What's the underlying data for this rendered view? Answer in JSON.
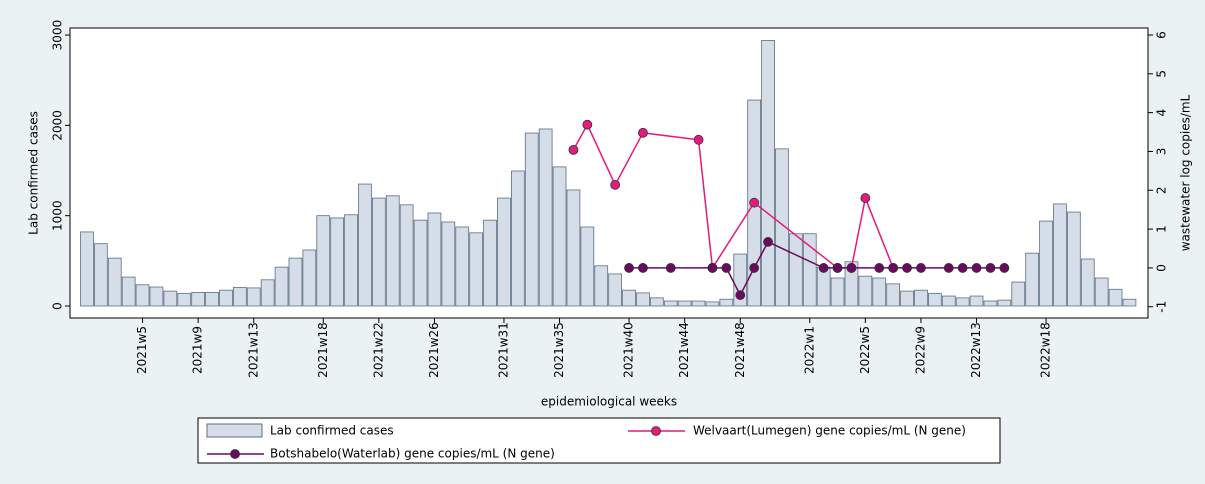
{
  "chart_data": {
    "type": "bar-line",
    "xlabel": "epidemiological weeks",
    "ylabel": "Lab confirmed cases",
    "y2label": "wastewater log copies/mL",
    "categories": [
      null,
      null,
      null,
      null,
      "2021w5",
      null,
      null,
      null,
      "2021w9",
      null,
      null,
      null,
      "2021w13",
      null,
      null,
      null,
      null,
      "2021w18",
      null,
      null,
      null,
      "2021w22",
      null,
      null,
      null,
      "2021w26",
      null,
      null,
      null,
      null,
      "2021w31",
      null,
      null,
      null,
      "2021w35",
      null,
      null,
      null,
      null,
      "2021w40",
      null,
      null,
      null,
      "2021w44",
      null,
      null,
      null,
      "2021w48",
      null,
      null,
      null,
      null,
      "2022w1",
      null,
      null,
      null,
      "2022w5",
      null,
      null,
      null,
      "2022w9",
      null,
      null,
      null,
      "2022w13",
      null,
      null,
      null,
      null,
      "2022w18",
      null,
      null,
      null,
      null,
      null,
      null
    ],
    "bars": {
      "name": "Lab confirmed cases",
      "color": "#d5dee8",
      "edge": "#5c6f82",
      "values": [
        820,
        690,
        530,
        320,
        235,
        210,
        165,
        140,
        150,
        150,
        175,
        205,
        200,
        290,
        430,
        530,
        620,
        1000,
        975,
        1010,
        1350,
        1195,
        1220,
        1120,
        950,
        1030,
        930,
        875,
        810,
        950,
        1195,
        1495,
        1915,
        1960,
        1540,
        1285,
        875,
        445,
        355,
        175,
        145,
        90,
        55,
        55,
        55,
        45,
        75,
        575,
        2280,
        2940,
        1740,
        800,
        800,
        430,
        310,
        490,
        330,
        310,
        245,
        165,
        175,
        140,
        110,
        90,
        110,
        55,
        65,
        265,
        585,
        940,
        1130,
        1040,
        520,
        310,
        185,
        75
      ]
    },
    "series": [
      {
        "name": "Welvaart(Lumegen) gene copies/mL (N gene)",
        "color": "#e6197d",
        "axis": "y2",
        "x": [
          35,
          36,
          38,
          40,
          44,
          45,
          48,
          54,
          55,
          56,
          58
        ],
        "values": [
          3.04,
          3.69,
          2.14,
          3.48,
          3.3,
          0,
          1.68,
          0,
          0,
          1.8,
          0
        ]
      },
      {
        "name": "Botshabelo(Waterlab) gene copies/mL (N gene)",
        "color": "#6a0a5f",
        "axis": "y2",
        "x": [
          39,
          40,
          42,
          45,
          46,
          47,
          48,
          49,
          53,
          54,
          55,
          57,
          58,
          59,
          60,
          62,
          63,
          64,
          65,
          66
        ],
        "values": [
          0,
          0,
          0,
          0,
          0,
          -0.7,
          0,
          0.67,
          0,
          0,
          0,
          0,
          0,
          0,
          0,
          0,
          0,
          0,
          0,
          0
        ]
      }
    ],
    "ylim": [
      -133,
      3078
    ],
    "yticks": [
      0,
      1000,
      2000,
      3000
    ],
    "y2lim": [
      -1.29,
      6.18
    ],
    "y2ticks": [
      -1,
      0,
      1,
      2,
      3,
      4,
      5,
      6
    ],
    "grid": false,
    "legend": "bottom"
  }
}
